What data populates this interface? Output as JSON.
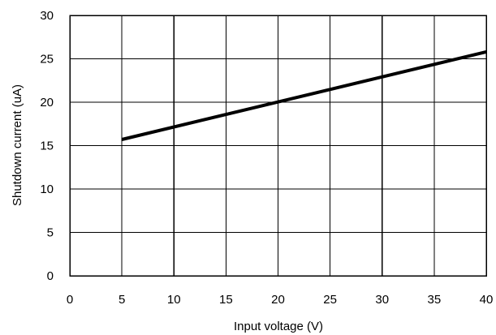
{
  "chart_data": {
    "type": "line",
    "xlabel": "Input voltage (V)",
    "ylabel": "Shutdown current (uA)",
    "xlim": [
      0,
      40
    ],
    "ylim": [
      0,
      30
    ],
    "x_ticks": [
      0,
      5,
      10,
      15,
      20,
      25,
      30,
      35,
      40
    ],
    "y_ticks": [
      0,
      5,
      10,
      15,
      20,
      25,
      30
    ],
    "grid": true,
    "series": [
      {
        "x": [
          5,
          40
        ],
        "y": [
          15.7,
          25.8
        ],
        "color": "#000000"
      }
    ]
  }
}
